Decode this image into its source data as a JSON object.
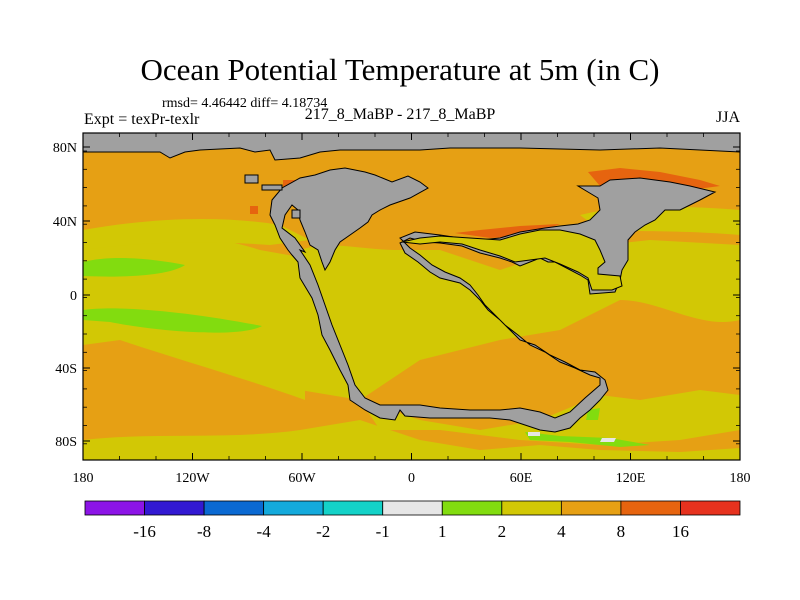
{
  "title": "Ocean Potential Temperature at 5m (in C)",
  "stats": "rmsd= 4.46442 diff= 4.18734",
  "subtitle": "217_8_MaBP - 217_8_MaBP",
  "expt": "Expt = texPr-texlr",
  "season": "JJA",
  "axes": {
    "x_ticks": [
      "180",
      "120W",
      "60W",
      "0",
      "60E",
      "120E",
      "180"
    ],
    "y_ticks": [
      "80N",
      "40N",
      "0",
      "40S",
      "80S"
    ]
  },
  "colorbar": {
    "labels": [
      "-16",
      "-8",
      "-4",
      "-2",
      "-1",
      "1",
      "2",
      "4",
      "8",
      "16"
    ],
    "colors": [
      "#8c14e6",
      "#3219d2",
      "#0a69d2",
      "#14aadc",
      "#14d2c8",
      "#e6e6e6",
      "#82dc0f",
      "#d2c805",
      "#e6a014",
      "#e6640f",
      "#e6321e"
    ]
  },
  "colors": {
    "land": "#a0a0a0",
    "c2": "#82dc0f",
    "c4": "#d2c805",
    "c8": "#e6a014",
    "c16": "#e6640f",
    "near_zero": "#e6e6e6"
  }
}
